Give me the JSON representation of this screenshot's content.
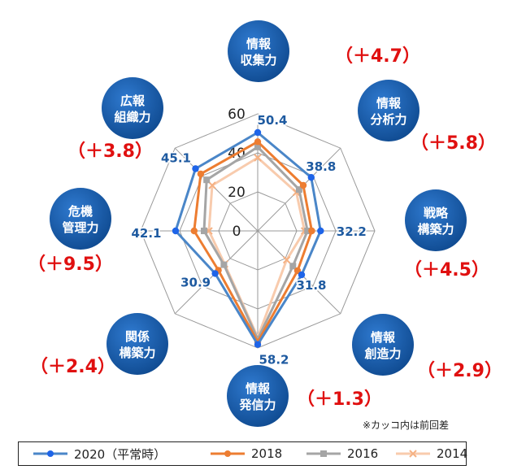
{
  "chart_data": {
    "type": "radar",
    "axes": [
      "情報収集力",
      "情報分析力",
      "戦略構築力",
      "情報創造力",
      "情報発信力",
      "関係構築力",
      "危機管理力",
      "広報組織力"
    ],
    "axis_badges": [
      {
        "line1": "情報",
        "line2": "収集力"
      },
      {
        "line1": "情報",
        "line2": "分析力"
      },
      {
        "line1": "戦略",
        "line2": "構築力"
      },
      {
        "line1": "情報",
        "line2": "創造力"
      },
      {
        "line1": "情報",
        "line2": "発信力"
      },
      {
        "line1": "関係",
        "line2": "構築力"
      },
      {
        "line1": "危機",
        "line2": "管理力"
      },
      {
        "line1": "広報",
        "line2": "組織力"
      }
    ],
    "diffs": [
      "（＋4.7）",
      "（＋5.8）",
      "（＋4.5）",
      "（＋2.9）",
      "（＋1.3）",
      "（＋2.4）",
      "（＋9.5）",
      "（＋3.8）"
    ],
    "rlim": [
      0,
      60
    ],
    "ticks": [
      "0",
      "20",
      "40",
      "60"
    ],
    "tick_values": [
      0,
      20,
      40,
      60
    ],
    "value_labels": [
      "50.4",
      "38.8",
      "32.2",
      "31.8",
      "58.2",
      "30.9",
      "42.1",
      "45.1"
    ],
    "series": [
      {
        "name": "2020（平常時）",
        "color": "#4a86c8",
        "marker": "circle",
        "marker_color": "#1e64e8",
        "values": [
          50.4,
          38.8,
          32.2,
          31.8,
          58.2,
          30.9,
          42.1,
          45.1
        ]
      },
      {
        "name": "2018",
        "color": "#ed7d31",
        "marker": "circle",
        "marker_color": "#ed7d31",
        "values": [
          45.7,
          33.0,
          27.7,
          28.9,
          56.9,
          28.5,
          32.6,
          41.3
        ]
      },
      {
        "name": "2016",
        "color": "#a5a5a5",
        "marker": "square",
        "marker_color": "#a5a5a5",
        "values": [
          43.0,
          30.0,
          25.5,
          25.5,
          55.5,
          24.5,
          27.5,
          37.0
        ]
      },
      {
        "name": "2014",
        "color": "#f8cbad",
        "marker": "x",
        "marker_color": "#f5b183",
        "values": [
          37.5,
          28.0,
          24.0,
          21.0,
          54.5,
          24.0,
          25.0,
          33.0
        ]
      }
    ],
    "grid": true
  },
  "note": "※カッコ内は前回差",
  "legend": [
    "2020（平常時）",
    "2018",
    "2016",
    "2014"
  ],
  "colors": {
    "badge": "#1a5aa0",
    "diff_text": "#e01010",
    "value_label": "#1e5aa0"
  }
}
